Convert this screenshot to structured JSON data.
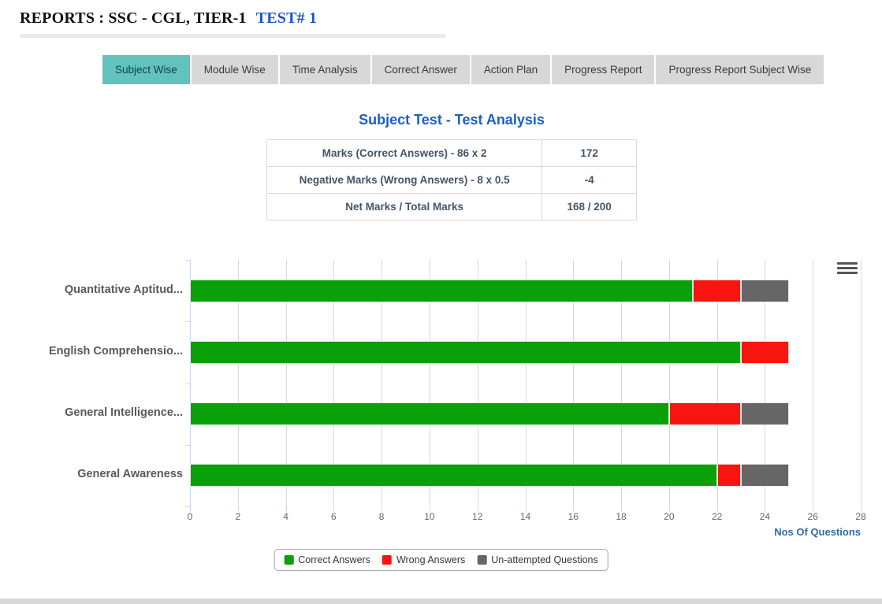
{
  "header": {
    "title": "REPORTS : SSC - CGL, TIER-1",
    "test_label": "TEST# 1"
  },
  "tabs": [
    {
      "label": "Subject Wise",
      "active": true
    },
    {
      "label": "Module Wise",
      "active": false
    },
    {
      "label": "Time Analysis",
      "active": false
    },
    {
      "label": "Correct Answer",
      "active": false
    },
    {
      "label": "Action Plan",
      "active": false
    },
    {
      "label": "Progress Report",
      "active": false
    },
    {
      "label": "Progress Report Subject Wise",
      "active": false
    }
  ],
  "analysis": {
    "title": "Subject Test - Test Analysis",
    "rows": [
      {
        "label": "Marks (Correct Answers) - 86 x 2",
        "value": "172"
      },
      {
        "label": "Negative Marks (Wrong Answers) - 8 x 0.5",
        "value": "-4"
      },
      {
        "label": "Net Marks / Total Marks",
        "value": "168 / 200"
      }
    ]
  },
  "chart_data": {
    "type": "bar",
    "orientation": "horizontal",
    "stacked": true,
    "categories": [
      "Quantitative Aptitud...",
      "English Comprehensio...",
      "General Intelligence...",
      "General Awareness"
    ],
    "series": [
      {
        "name": "Correct Answers",
        "color": "#09a009",
        "values": [
          21,
          23,
          20,
          22
        ]
      },
      {
        "name": "Wrong Answers",
        "color": "#fa1410",
        "values": [
          2,
          2,
          3,
          1
        ]
      },
      {
        "name": "Un-attempted Questions",
        "color": "#666666",
        "values": [
          2,
          0,
          2,
          2
        ]
      }
    ],
    "xlabel": "Nos Of Questions",
    "xlim": [
      0,
      28
    ],
    "xtick_step": 2,
    "grid": true,
    "legend_position": "bottom",
    "menu_icon": "hamburger-icon"
  },
  "colors": {
    "tab_active_bg": "#62c3be",
    "tab_inactive_bg": "#d8d8d8",
    "title_blue": "#1d5fbf",
    "header_link_blue": "#1d56c8",
    "table_text": "#44546a",
    "axis_title_blue": "#2e6da4",
    "gridline": "#d8d8d8",
    "axis_line": "#ccd6eb"
  }
}
